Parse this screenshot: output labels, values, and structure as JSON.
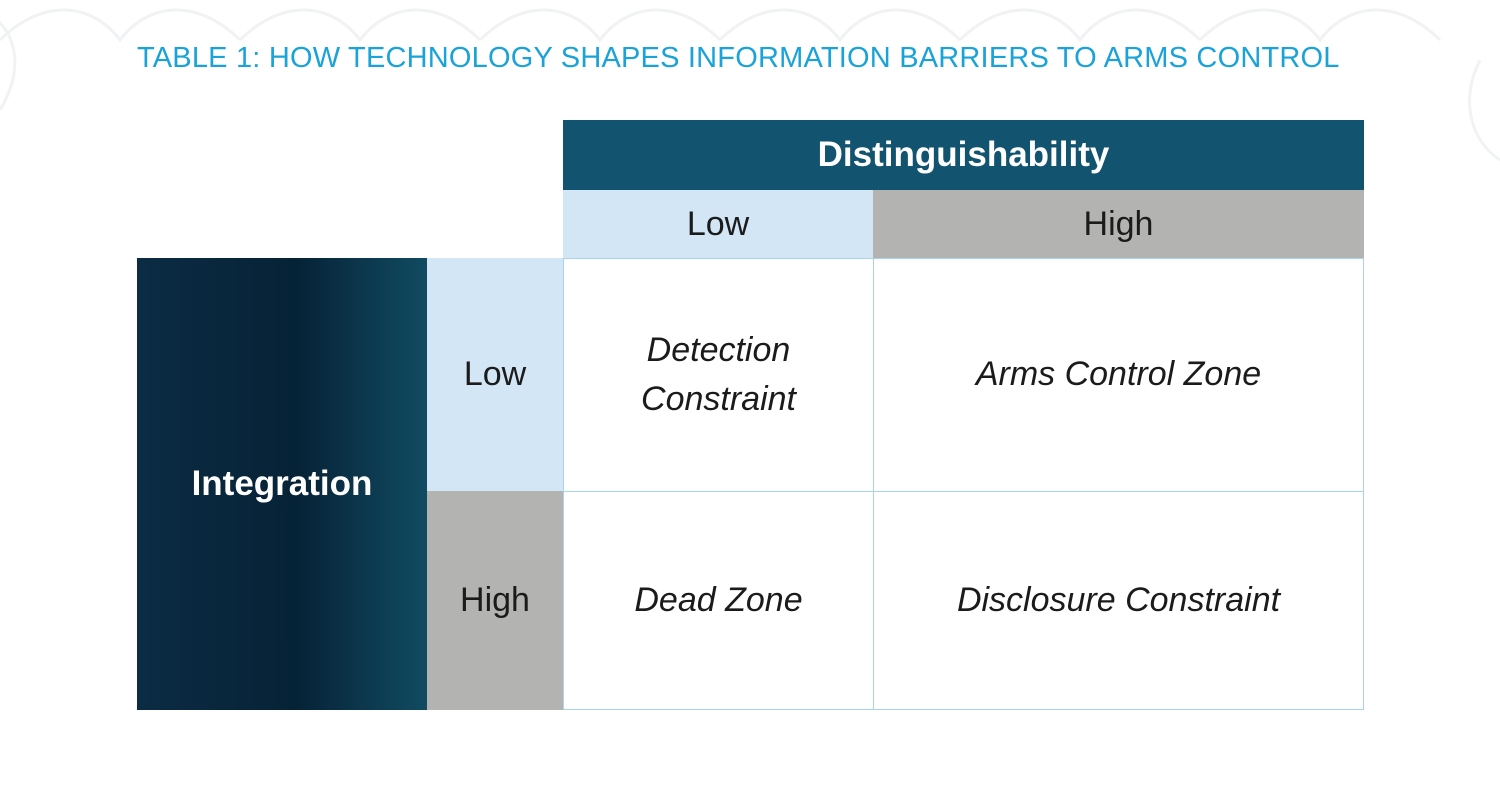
{
  "table": {
    "title": "TABLE 1: HOW TECHNOLOGY SHAPES INFORMATION BARRIERS TO ARMS CONTROL",
    "column_header": "Distinguishability",
    "columns": [
      "Low",
      "High"
    ],
    "row_header": "Integration",
    "rows": [
      "Low",
      "High"
    ],
    "cells": [
      [
        "Detection Constraint",
        "Arms Control Zone"
      ],
      [
        "Dead Zone",
        "Disclosure Constraint"
      ]
    ]
  },
  "colors": {
    "title": "#1aa3d9",
    "header_dark": "#12546f",
    "low_fill": "#d2e6f6",
    "high_fill": "#b3b3b2",
    "grid_border": "#a9d2ec"
  }
}
